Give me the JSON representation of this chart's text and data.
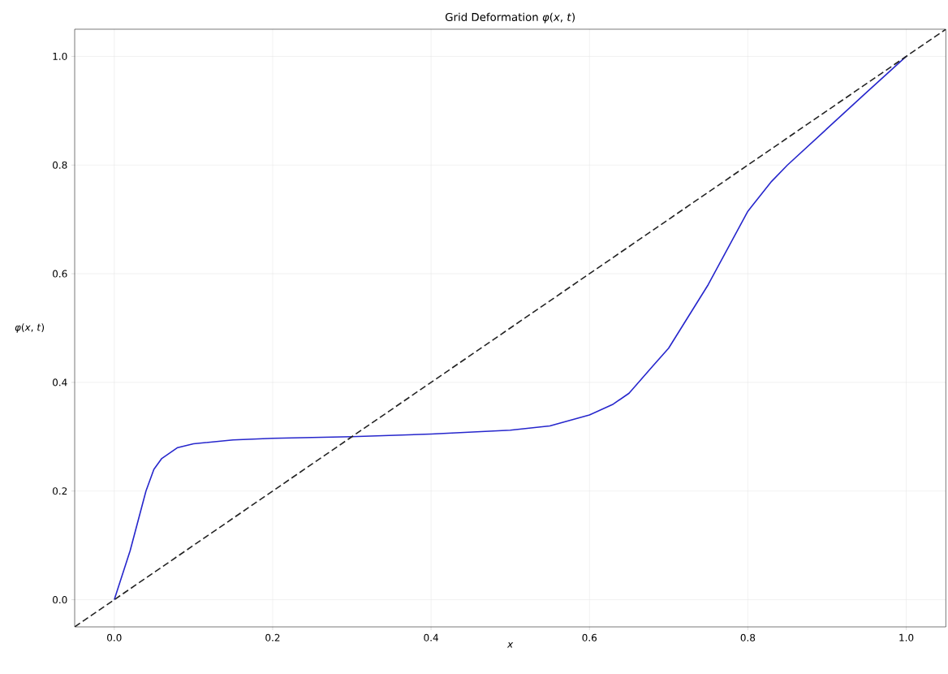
{
  "chart_data": {
    "type": "line",
    "title": "Grid Deformation *φ*(*x*, *t*)",
    "xlabel": "*x*",
    "ylabel": "*φ*(*x*, *t*)",
    "xlim": [
      -0.05,
      1.05
    ],
    "ylim": [
      -0.05,
      1.05
    ],
    "xticks": [
      {
        "value": 0,
        "label": "0.0"
      },
      {
        "value": 0.2,
        "label": "0.2"
      },
      {
        "value": 0.4,
        "label": "0.4"
      },
      {
        "value": 0.6,
        "label": "0.6"
      },
      {
        "value": 0.8,
        "label": "0.8"
      },
      {
        "value": 1,
        "label": "1.0"
      }
    ],
    "yticks": [
      {
        "value": 0,
        "label": "0.0"
      },
      {
        "value": 0.2,
        "label": "0.2"
      },
      {
        "value": 0.4,
        "label": "0.4"
      },
      {
        "value": 0.6,
        "label": "0.6"
      },
      {
        "value": 0.8,
        "label": "0.8"
      },
      {
        "value": 1,
        "label": "1.0"
      }
    ],
    "grid": true,
    "series": [
      {
        "color": "#2626cc",
        "line_style": "solid",
        "x": [
          0,
          0.02,
          0.04,
          0.05,
          0.06,
          0.08,
          0.1,
          0.15,
          0.2,
          0.3,
          0.4,
          0.5,
          0.55,
          0.6,
          0.63,
          0.65,
          0.68,
          0.7,
          0.75,
          0.8,
          0.83,
          0.85,
          0.9,
          0.95,
          1.0
        ],
        "values": [
          0,
          0.09,
          0.2,
          0.24,
          0.26,
          0.28,
          0.287,
          0.294,
          0.297,
          0.3,
          0.305,
          0.312,
          0.32,
          0.34,
          0.36,
          0.38,
          0.43,
          0.463,
          0.58,
          0.715,
          0.77,
          0.8,
          0.867,
          0.934,
          1.0
        ]
      },
      {
        "color": "#222222",
        "line_style": "dashed",
        "x": [
          -0.05,
          1.05
        ],
        "values": [
          -0.05,
          1.05
        ]
      }
    ]
  }
}
